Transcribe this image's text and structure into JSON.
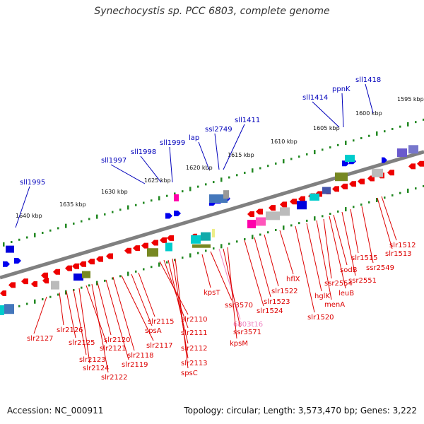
{
  "title": "Synechocystis sp. PCC 6803, complete genome",
  "footer": {
    "accession": "Accession: NC_000911",
    "topology": "Topology: circular; Length: 3,573,470 bp; Genes: 3,222"
  },
  "colors": {
    "backbone": "#808080",
    "forward_gene": "#0000ee",
    "reverse_gene": "#ee0000",
    "top_label": "#0000bb",
    "bottom_label": "#dd0000",
    "rna_label": "#f080c0",
    "scale_dots": "#228822"
  },
  "scale": {
    "labels": [
      "1640 kbp",
      "1635 kbp",
      "1630 kbp",
      "1625 kbp",
      "1620 kbp",
      "1615 kbp",
      "1610 kbp",
      "1605 kbp",
      "1600 kbp",
      "1595 kbp"
    ]
  },
  "top_labels": [
    "sll1995",
    "sll1997",
    "sll1998",
    "sll1999",
    "lap",
    "ssl2749",
    "sll1411",
    "sll1414",
    "ppnK",
    "sll1418"
  ],
  "bottom_labels": [
    "slr2127",
    "slr2126",
    "slr2125",
    "slr2123",
    "slr2124",
    "slr2121",
    "slr2122",
    "slr2120",
    "slr2119",
    "slr2118",
    "slr2117",
    "spsA",
    "slr2115",
    "slr2110",
    "slr2111",
    "slr2112",
    "slr2113",
    "spsC",
    "kpsT",
    "ssr3570",
    "6803t16",
    "ssr3571",
    "kpsM",
    "slr1524",
    "slr1523",
    "slr1522",
    "hflX",
    "slr1520",
    "hglK",
    "menA",
    "ssr2554",
    "leuB",
    "sodB",
    "ssr2551",
    "slr1515",
    "ssr2549",
    "slr1513",
    "slr1512"
  ]
}
